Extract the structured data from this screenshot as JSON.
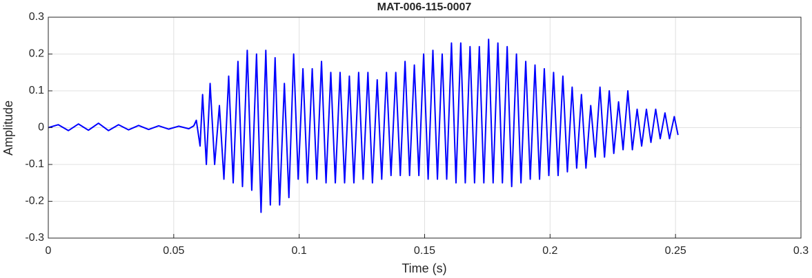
{
  "chart_data": {
    "type": "line",
    "title": "MAT-006-115-0007",
    "xlabel": "Time (s)",
    "ylabel": "Amplitude",
    "color": "#0000ff",
    "grid": true,
    "xlim": [
      0,
      0.3
    ],
    "xticks": [
      0,
      0.05,
      0.1,
      0.15,
      0.2,
      0.25,
      0.3
    ],
    "ylim": [
      -0.3,
      0.3
    ],
    "yticks": [
      -0.3,
      -0.2,
      -0.1,
      0,
      0.1,
      0.2,
      0.3
    ],
    "x": [
      0,
      0.004,
      0.008,
      0.012,
      0.016,
      0.02,
      0.024,
      0.028,
      0.032,
      0.036,
      0.04,
      0.044,
      0.048,
      0.052,
      0.056,
      0.058,
      0.059,
      0.0605,
      0.0615,
      0.063,
      0.0645,
      0.0663,
      0.0682,
      0.07,
      0.0719,
      0.0737,
      0.0756,
      0.0774,
      0.0793,
      0.0811,
      0.083,
      0.0848,
      0.0867,
      0.0885,
      0.0904,
      0.0922,
      0.0941,
      0.0959,
      0.0978,
      0.0996,
      0.1015,
      0.1033,
      0.1052,
      0.107,
      0.1089,
      0.1107,
      0.1126,
      0.1144,
      0.1163,
      0.1181,
      0.12,
      0.1218,
      0.1237,
      0.1255,
      0.1274,
      0.1292,
      0.1311,
      0.1329,
      0.1348,
      0.1366,
      0.1385,
      0.1403,
      0.1422,
      0.144,
      0.1459,
      0.1477,
      0.1496,
      0.1514,
      0.1533,
      0.1551,
      0.157,
      0.1588,
      0.1607,
      0.1625,
      0.1644,
      0.1662,
      0.1681,
      0.1699,
      0.1718,
      0.1736,
      0.1755,
      0.1773,
      0.1792,
      0.181,
      0.1829,
      0.1847,
      0.1866,
      0.1884,
      0.1903,
      0.1921,
      0.194,
      0.1958,
      0.1977,
      0.1995,
      0.2014,
      0.2032,
      0.2051,
      0.2069,
      0.2088,
      0.2106,
      0.2125,
      0.2143,
      0.2162,
      0.218,
      0.2199,
      0.2217,
      0.2236,
      0.2254,
      0.2273,
      0.2291,
      0.231,
      0.2328,
      0.2347,
      0.2365,
      0.2384,
      0.2402,
      0.2421,
      0.2439,
      0.2458,
      0.2476,
      0.2495,
      0.251
    ],
    "values": [
      0,
      0.008,
      -0.008,
      0.01,
      -0.007,
      0.012,
      -0.008,
      0.008,
      -0.006,
      0.006,
      -0.005,
      0.005,
      -0.004,
      0.004,
      -0.003,
      0.005,
      0.02,
      -0.05,
      0.09,
      -0.1,
      0.12,
      -0.1,
      0.06,
      -0.14,
      0.14,
      -0.15,
      0.18,
      -0.16,
      0.21,
      -0.17,
      0.2,
      -0.23,
      0.21,
      -0.21,
      0.19,
      -0.21,
      0.12,
      -0.19,
      0.2,
      -0.14,
      0.16,
      -0.15,
      0.16,
      -0.14,
      0.18,
      -0.15,
      0.15,
      -0.15,
      0.15,
      -0.15,
      0.14,
      -0.15,
      0.15,
      -0.14,
      0.15,
      -0.15,
      0.13,
      -0.14,
      0.15,
      -0.13,
      0.15,
      -0.13,
      0.18,
      -0.13,
      0.17,
      -0.13,
      0.2,
      -0.14,
      0.21,
      -0.14,
      0.2,
      -0.14,
      0.23,
      -0.15,
      0.23,
      -0.15,
      0.22,
      -0.15,
      0.22,
      -0.15,
      0.24,
      -0.15,
      0.23,
      -0.15,
      0.22,
      -0.16,
      0.2,
      -0.15,
      0.18,
      -0.14,
      0.17,
      -0.14,
      0.16,
      -0.13,
      0.15,
      -0.13,
      0.14,
      -0.12,
      0.11,
      -0.11,
      0.09,
      -0.11,
      0.06,
      -0.08,
      0.11,
      -0.08,
      0.1,
      -0.07,
      0.07,
      -0.06,
      0.1,
      -0.06,
      0.05,
      -0.05,
      0.05,
      -0.04,
      0.05,
      -0.03,
      0.04,
      -0.03,
      0.03,
      -0.02
    ]
  }
}
